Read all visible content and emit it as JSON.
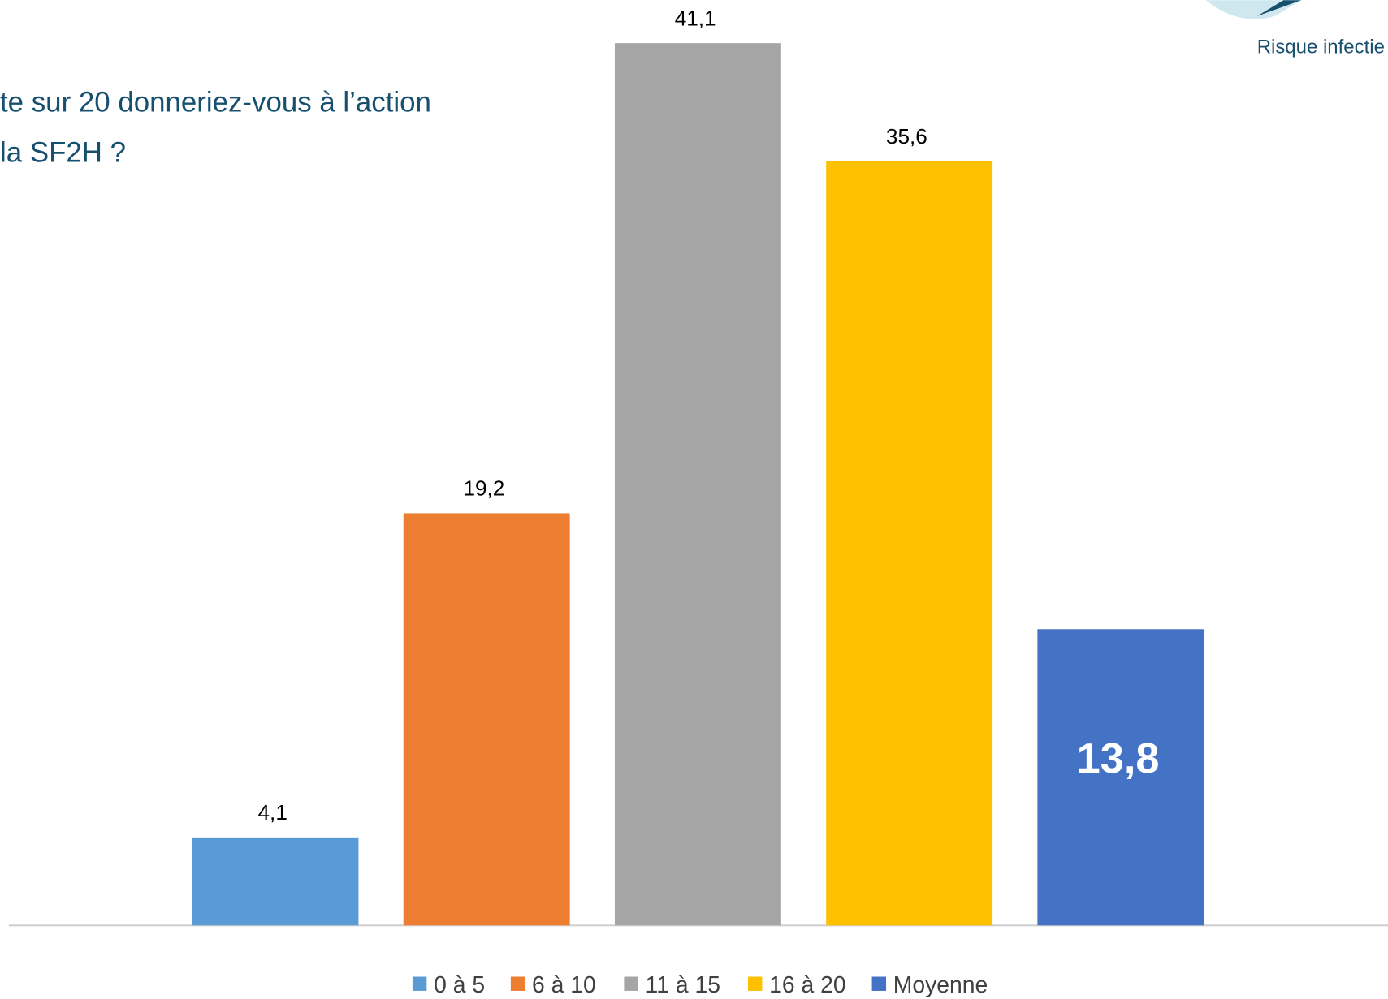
{
  "chart_data": {
    "type": "bar",
    "title": [
      "te sur 20 donneriez-vous à l’action",
      "la SF2H ?"
    ],
    "logo_text": "Risque infectie",
    "ylim": [
      0,
      43.1
    ],
    "series": [
      {
        "name": "0 à 5",
        "color": "#5b9bd5",
        "values": [
          4.1
        ],
        "value_labels": [
          "4,1"
        ]
      },
      {
        "name": "6 à 10",
        "color": "#ed7d31",
        "values": [
          19.2
        ],
        "value_labels": [
          "19,2"
        ]
      },
      {
        "name": "11 à 15",
        "color": "#a5a5a5",
        "values": [
          41.1
        ],
        "value_labels": [
          "41,1"
        ]
      },
      {
        "name": "16 à 20",
        "color": "#ffc000",
        "values": [
          35.6
        ],
        "value_labels": [
          "35,6"
        ]
      },
      {
        "name": "Moyenne",
        "color": "#4472c4",
        "values": [
          13.8
        ],
        "value_labels": [
          "13,8"
        ]
      }
    ]
  }
}
